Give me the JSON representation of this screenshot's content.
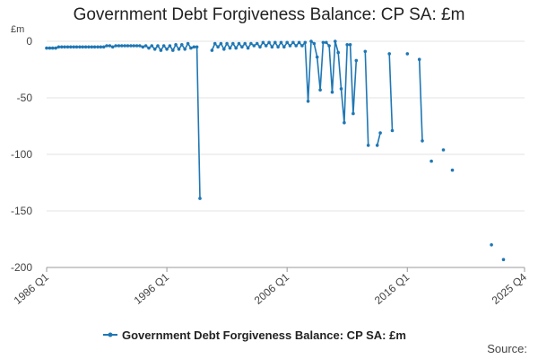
{
  "chart_data": {
    "type": "line",
    "title": "Government Debt Forgiveness Balance: CP SA: £m",
    "y_unit_label": "£m",
    "ylim": [
      -200,
      0
    ],
    "y_ticks": [
      0,
      -50,
      -100,
      -150,
      -200
    ],
    "x_ticks": [
      "1986 Q1",
      "1996 Q1",
      "2006 Q1",
      "2016 Q1",
      "2025 Q4"
    ],
    "x_range": [
      "1986 Q1",
      "2025 Q4"
    ],
    "grid": "horizontal",
    "legend_position": "bottom",
    "color": "#1f77b4",
    "series": [
      {
        "name": "Government Debt Forgiveness Balance: CP SA: £m",
        "points": [
          [
            "1986 Q1",
            -6
          ],
          [
            "1986 Q2",
            -6
          ],
          [
            "1986 Q3",
            -6
          ],
          [
            "1986 Q4",
            -6
          ],
          [
            "1987 Q1",
            -5
          ],
          [
            "1987 Q2",
            -5
          ],
          [
            "1987 Q3",
            -5
          ],
          [
            "1987 Q4",
            -5
          ],
          [
            "1988 Q1",
            -5
          ],
          [
            "1988 Q2",
            -5
          ],
          [
            "1988 Q3",
            -5
          ],
          [
            "1988 Q4",
            -5
          ],
          [
            "1989 Q1",
            -5
          ],
          [
            "1989 Q2",
            -5
          ],
          [
            "1989 Q3",
            -5
          ],
          [
            "1989 Q4",
            -5
          ],
          [
            "1990 Q1",
            -5
          ],
          [
            "1990 Q2",
            -5
          ],
          [
            "1990 Q3",
            -5
          ],
          [
            "1990 Q4",
            -5
          ],
          [
            "1991 Q1",
            -4
          ],
          [
            "1991 Q2",
            -4
          ],
          [
            "1991 Q3",
            -5
          ],
          [
            "1991 Q4",
            -4
          ],
          [
            "1992 Q1",
            -4
          ],
          [
            "1992 Q2",
            -4
          ],
          [
            "1992 Q3",
            -4
          ],
          [
            "1992 Q4",
            -4
          ],
          [
            "1993 Q1",
            -4
          ],
          [
            "1993 Q2",
            -4
          ],
          [
            "1993 Q3",
            -4
          ],
          [
            "1993 Q4",
            -4
          ],
          [
            "1994 Q1",
            -5
          ],
          [
            "1994 Q2",
            -4
          ],
          [
            "1994 Q3",
            -6
          ],
          [
            "1994 Q4",
            -4
          ],
          [
            "1995 Q1",
            -7
          ],
          [
            "1995 Q2",
            -4
          ],
          [
            "1995 Q3",
            -8
          ],
          [
            "1995 Q4",
            -4
          ],
          [
            "1996 Q1",
            -7
          ],
          [
            "1996 Q2",
            -4
          ],
          [
            "1996 Q3",
            -8
          ],
          [
            "1996 Q4",
            -3
          ],
          [
            "1997 Q1",
            -7
          ],
          [
            "1997 Q2",
            -3
          ],
          [
            "1997 Q3",
            -7
          ],
          [
            "1997 Q4",
            -2
          ],
          [
            "1998 Q1",
            -6
          ],
          [
            "1998 Q2",
            -5
          ],
          [
            "1998 Q3",
            -5
          ],
          [
            "1998 Q4",
            -139
          ],
          [
            "1999 Q1",
            null
          ],
          [
            "1999 Q2",
            null
          ],
          [
            "1999 Q3",
            null
          ],
          [
            "1999 Q4",
            -8
          ],
          [
            "2000 Q1",
            -2
          ],
          [
            "2000 Q2",
            -5
          ],
          [
            "2000 Q3",
            -2
          ],
          [
            "2000 Q4",
            -7
          ],
          [
            "2001 Q1",
            -2
          ],
          [
            "2001 Q2",
            -6
          ],
          [
            "2001 Q3",
            -2
          ],
          [
            "2001 Q4",
            -6
          ],
          [
            "2002 Q1",
            -2
          ],
          [
            "2002 Q2",
            -5
          ],
          [
            "2002 Q3",
            -2
          ],
          [
            "2002 Q4",
            -6
          ],
          [
            "2003 Q1",
            -2
          ],
          [
            "2003 Q2",
            -4
          ],
          [
            "2003 Q3",
            -2
          ],
          [
            "2003 Q4",
            -5
          ],
          [
            "2004 Q1",
            -1
          ],
          [
            "2004 Q2",
            -4
          ],
          [
            "2004 Q3",
            -1
          ],
          [
            "2004 Q4",
            -5
          ],
          [
            "2005 Q1",
            -1
          ],
          [
            "2005 Q2",
            -5
          ],
          [
            "2005 Q3",
            -1
          ],
          [
            "2005 Q4",
            -5
          ],
          [
            "2006 Q1",
            -1
          ],
          [
            "2006 Q2",
            -4
          ],
          [
            "2006 Q3",
            -1
          ],
          [
            "2006 Q4",
            -4
          ],
          [
            "2007 Q1",
            -1
          ],
          [
            "2007 Q2",
            -4
          ],
          [
            "2007 Q3",
            -1
          ],
          [
            "2007 Q4",
            -53
          ],
          [
            "2008 Q1",
            0
          ],
          [
            "2008 Q2",
            -2
          ],
          [
            "2008 Q3",
            -14
          ],
          [
            "2008 Q4",
            -43
          ],
          [
            "2009 Q1",
            -1
          ],
          [
            "2009 Q2",
            -1
          ],
          [
            "2009 Q3",
            -4
          ],
          [
            "2009 Q4",
            -45
          ],
          [
            "2010 Q1",
            0
          ],
          [
            "2010 Q2",
            -10
          ],
          [
            "2010 Q3",
            -42
          ],
          [
            "2010 Q4",
            -72
          ],
          [
            "2011 Q1",
            -3
          ],
          [
            "2011 Q2",
            -3
          ],
          [
            "2011 Q3",
            -64
          ],
          [
            "2011 Q4",
            -17
          ],
          [
            "2012 Q1",
            null
          ],
          [
            "2012 Q2",
            null
          ],
          [
            "2012 Q3",
            -9
          ],
          [
            "2012 Q4",
            -92
          ],
          [
            "2013 Q1",
            null
          ],
          [
            "2013 Q2",
            null
          ],
          [
            "2013 Q3",
            -92
          ],
          [
            "2013 Q4",
            -81
          ],
          [
            "2014 Q1",
            null
          ],
          [
            "2014 Q2",
            null
          ],
          [
            "2014 Q3",
            -11
          ],
          [
            "2014 Q4",
            -79
          ],
          [
            "2015 Q1",
            null
          ],
          [
            "2015 Q2",
            null
          ],
          [
            "2015 Q3",
            null
          ],
          [
            "2015 Q4",
            null
          ],
          [
            "2016 Q1",
            -11
          ],
          [
            "2016 Q2",
            null
          ],
          [
            "2016 Q3",
            null
          ],
          [
            "2016 Q4",
            null
          ],
          [
            "2017 Q1",
            -16
          ],
          [
            "2017 Q2",
            -88
          ],
          [
            "2017 Q3",
            null
          ],
          [
            "2017 Q4",
            null
          ],
          [
            "2018 Q1",
            -106
          ],
          [
            "2018 Q2",
            null
          ],
          [
            "2018 Q3",
            null
          ],
          [
            "2018 Q4",
            null
          ],
          [
            "2019 Q1",
            -96
          ],
          [
            "2019 Q2",
            null
          ],
          [
            "2019 Q3",
            null
          ],
          [
            "2019 Q4",
            -114
          ],
          [
            "2020 Q1",
            null
          ],
          [
            "2020 Q2",
            null
          ],
          [
            "2020 Q3",
            null
          ],
          [
            "2020 Q4",
            null
          ],
          [
            "2021 Q1",
            null
          ],
          [
            "2021 Q2",
            null
          ],
          [
            "2021 Q3",
            null
          ],
          [
            "2021 Q4",
            null
          ],
          [
            "2022 Q1",
            null
          ],
          [
            "2022 Q2",
            null
          ],
          [
            "2022 Q3",
            null
          ],
          [
            "2022 Q4",
            null
          ],
          [
            "2023 Q1",
            -180
          ],
          [
            "2023 Q2",
            null
          ],
          [
            "2023 Q3",
            null
          ],
          [
            "2023 Q4",
            null
          ],
          [
            "2024 Q1",
            -193
          ]
        ]
      }
    ]
  },
  "footer": {
    "source_label": "Source:"
  }
}
